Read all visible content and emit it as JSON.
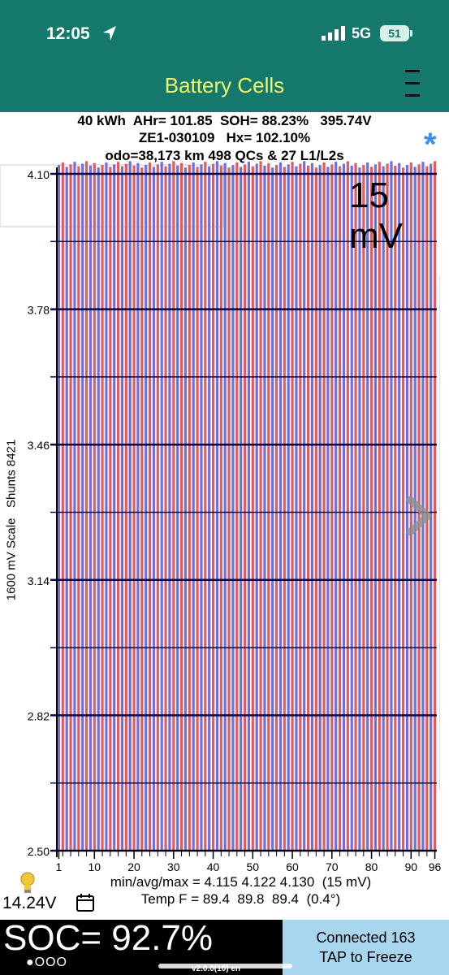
{
  "status_bar": {
    "time": "12:05",
    "network": "5G",
    "battery": "51"
  },
  "app": {
    "title": "Battery Cells"
  },
  "header": {
    "line1": "40 kWh  AHr= 101.85  SOH= 88.23%   395.74V",
    "line2": "ZE1-030109   Hx= 102.10%",
    "line3": "odo=38,173 km 498 QCs & 27 L1/L2s"
  },
  "chart_data": {
    "type": "bar",
    "y_axis_title": "1600 mV Scale   Shunts 8421",
    "scale_label": "15 mV",
    "y_ticks": [
      "4.10",
      "3.78",
      "3.46",
      "3.14",
      "2.82",
      "2.50"
    ],
    "ylim": [
      2.5,
      4.1
    ],
    "x_ticks": [
      "1",
      "10",
      "20",
      "30",
      "40",
      "50",
      "60",
      "70",
      "80",
      "90",
      "96"
    ],
    "cell_count": 96,
    "cell_min": 4.115,
    "cell_max": 4.13,
    "cell_colors": [
      "#e55a5a",
      "#6e6ee6"
    ],
    "grid": true
  },
  "stats": {
    "minavgmax": "min/avg/max = 4.115 4.122 4.130  (15 mV)",
    "temp": "Temp F = 89.4  89.8  89.4  (0.4°)"
  },
  "aux_voltage": "14.24V",
  "soc": "SOC= 92.7%",
  "page_dots": "●OOO",
  "connection": {
    "line1": "Connected 163",
    "line2": "TAP to Freeze"
  },
  "version": "v2.0.0(10) en"
}
